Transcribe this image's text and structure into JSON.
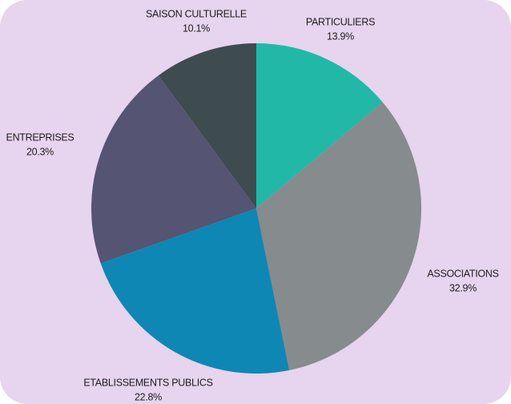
{
  "chart_data": {
    "type": "pie",
    "categories": [
      "PARTICULIERS",
      "ASSOCIATIONS",
      "ETABLISSEMENTS PUBLICS",
      "ENTREPRISES",
      "SAISON CULTURELLE"
    ],
    "values": [
      13.9,
      32.9,
      22.8,
      20.3,
      10.1
    ],
    "value_labels": [
      "13.9%",
      "32.9%",
      "22.8%",
      "20.3%",
      "10.1%"
    ],
    "colors": [
      "#22b8a7",
      "#868b8d",
      "#0e87b5",
      "#555473",
      "#3e4b4f"
    ]
  }
}
